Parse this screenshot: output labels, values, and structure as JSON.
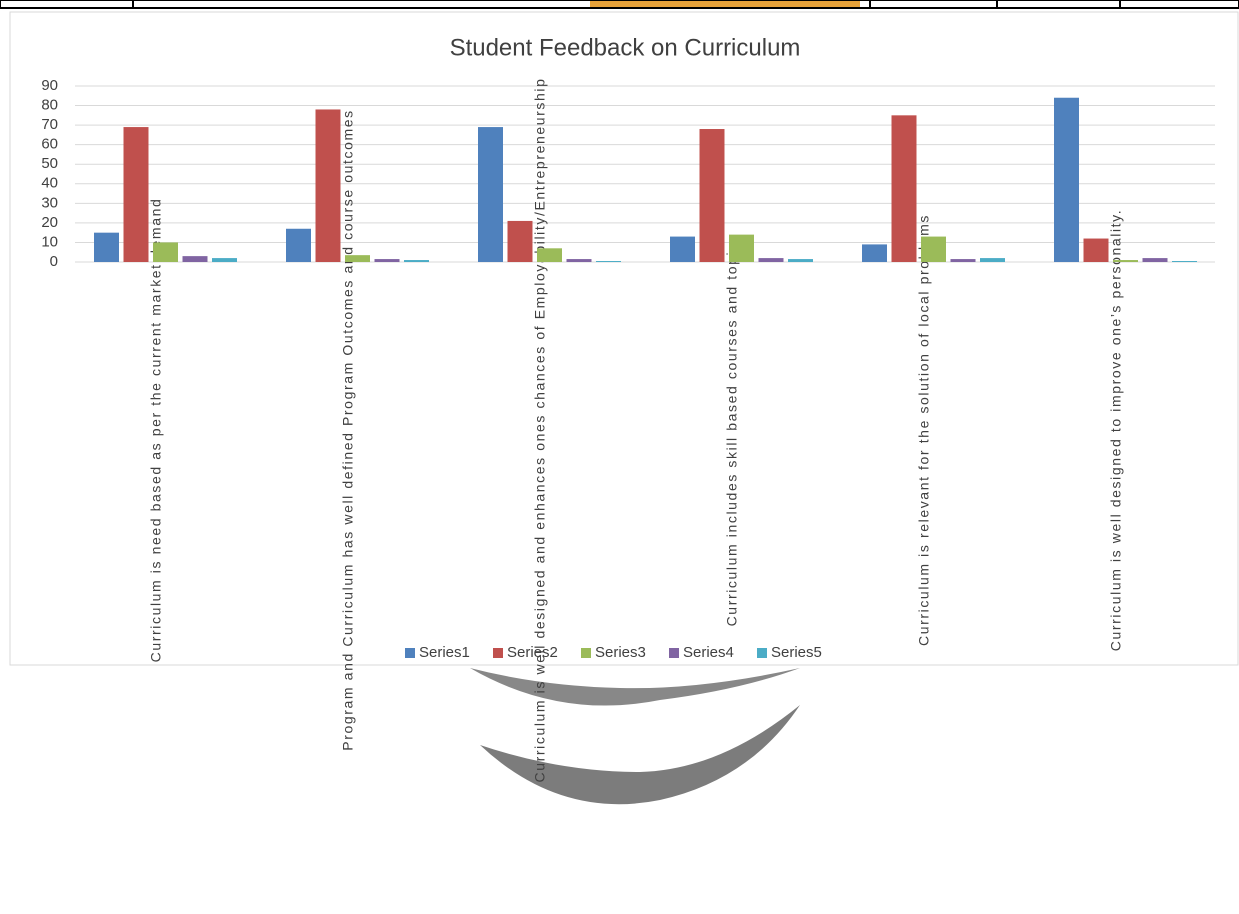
{
  "chart_data": {
    "type": "bar",
    "title": "Student Feedback on Curriculum",
    "categories": [
      "Curriculum is need based as per the current market demand",
      "Program and Curriculum has well defined Program Outcomes and course outcomes",
      "Curriculum is well designed and enhances ones chances of Employability/Entrepreneurship",
      "Curriculum includes skill based courses and topics",
      "Curriculum is relevant for the solution of local problems",
      "Curriculum is well designed to improve one’s personality."
    ],
    "series": [
      {
        "name": "Series1",
        "color": "#4f81bd",
        "values": [
          15,
          17,
          69,
          13,
          9,
          84
        ]
      },
      {
        "name": "Series2",
        "color": "#c0504d",
        "values": [
          69,
          78,
          21,
          68,
          75,
          12
        ]
      },
      {
        "name": "Series3",
        "color": "#9bbb59",
        "values": [
          10,
          3.5,
          7,
          14,
          13,
          1
        ]
      },
      {
        "name": "Series4",
        "color": "#8064a2",
        "values": [
          3,
          1.5,
          1.5,
          2,
          1.5,
          2
        ]
      },
      {
        "name": "Series5",
        "color": "#4bacc6",
        "values": [
          2,
          1,
          0.5,
          1.5,
          2,
          0.5
        ]
      }
    ],
    "ylim": [
      0,
      90
    ],
    "yticks": [
      0,
      10,
      20,
      30,
      40,
      50,
      60,
      70,
      80,
      90
    ],
    "grid": true,
    "legend": "bottom"
  }
}
